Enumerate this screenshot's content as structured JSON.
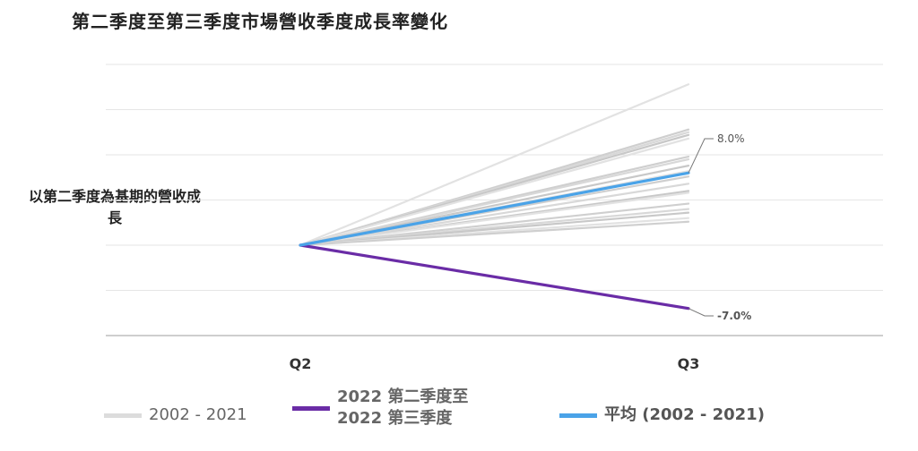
{
  "chart_data": {
    "type": "line",
    "title": "第二季度至第三季度市場營收季度成長率變化",
    "ylabel": "以第二季度為基期的營收成長",
    "categories": [
      "Q2",
      "Q3"
    ],
    "ylim": [
      -0.1,
      0.2
    ],
    "grid": true,
    "legend_position": "bottom",
    "series_groups": [
      {
        "name": "2002 - 2021",
        "color": "#cccccc",
        "lines": [
          [
            0,
            0.178
          ],
          [
            0,
            0.128
          ],
          [
            0,
            0.125
          ],
          [
            0,
            0.122
          ],
          [
            0,
            0.118
          ],
          [
            0,
            0.098
          ],
          [
            0,
            0.095
          ],
          [
            0,
            0.088
          ],
          [
            0,
            0.082
          ],
          [
            0,
            0.076
          ],
          [
            0,
            0.068
          ],
          [
            0,
            0.06
          ],
          [
            0,
            0.058
          ],
          [
            0,
            0.046
          ],
          [
            0,
            0.04
          ],
          [
            0,
            0.036
          ],
          [
            0,
            0.03
          ],
          [
            0,
            0.026
          ]
        ]
      },
      {
        "name": "2022 第二季度至\n2022 第三季度",
        "label_lines": [
          "2022 第二季度至",
          "2022 第三季度"
        ],
        "color": "#6a2ca6",
        "values": [
          0,
          -0.07
        ],
        "end_label": "-7.0%"
      },
      {
        "name": "平均 (2002 - 2021)",
        "color": "#4aa3e8",
        "values": [
          0,
          0.08
        ],
        "end_label": "8.0%"
      }
    ]
  }
}
